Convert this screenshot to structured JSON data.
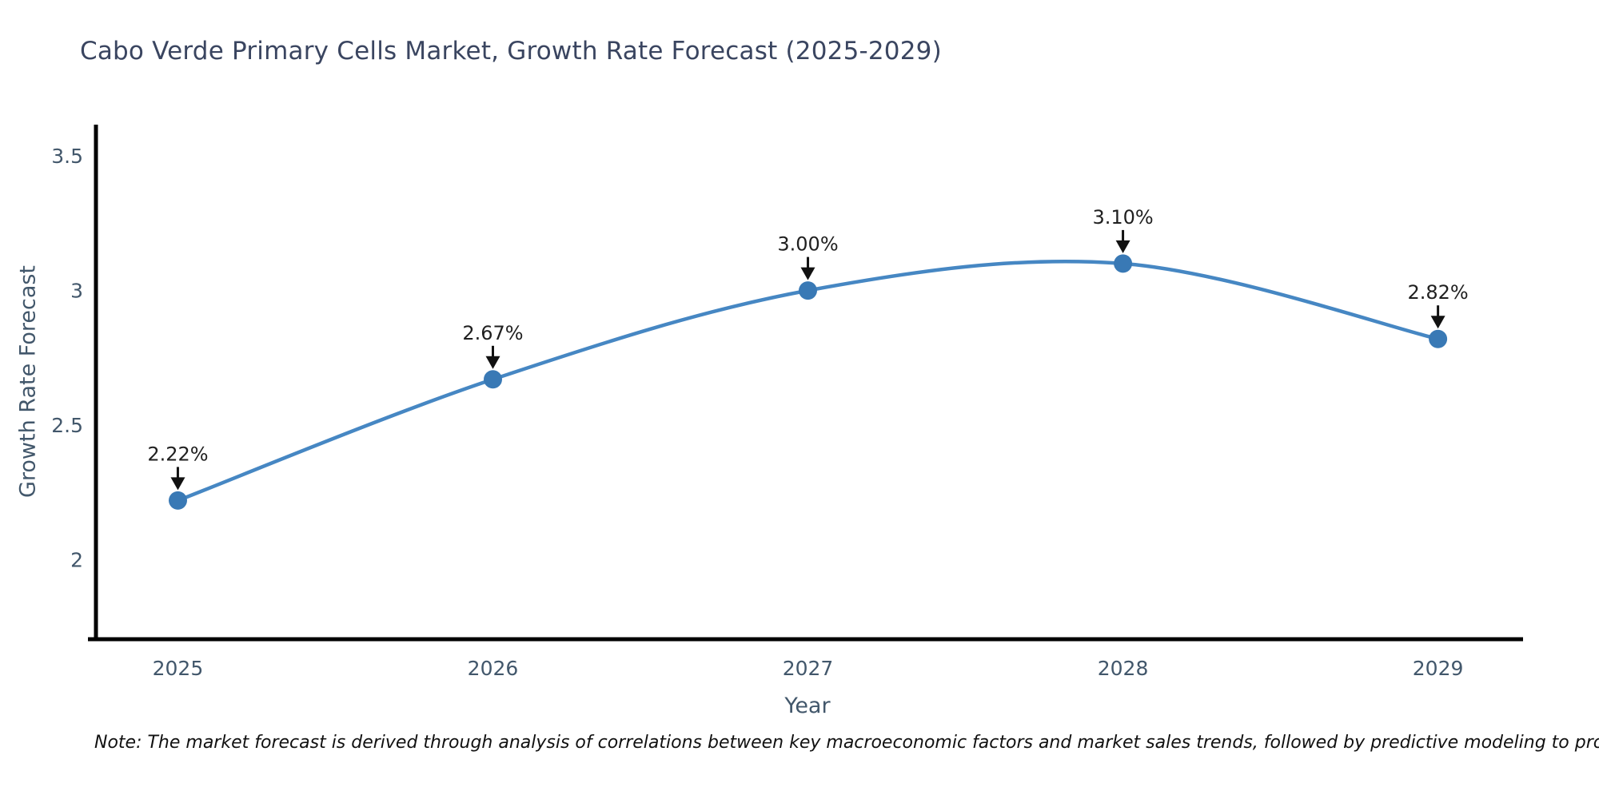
{
  "title": {
    "text": "Cabo Verde Primary Cells Market, Growth Rate Forecast (2025-2029)",
    "color": "#3a4560"
  },
  "footnote": {
    "text": "Note: The market forecast is derived through analysis of correlations between key macroeconomic factors and market sales trends, followed by predictive modeling to project future sales"
  },
  "chart_data": {
    "type": "line",
    "title": "Cabo Verde Primary Cells Market, Growth Rate Forecast (2025-2029)",
    "x": [
      2025,
      2026,
      2027,
      2028,
      2029
    ],
    "series": [
      {
        "name": "Growth Rate Forecast",
        "values": [
          2.22,
          2.67,
          3.0,
          3.1,
          2.82
        ]
      }
    ],
    "point_labels": [
      "2.22%",
      "2.67%",
      "3.00%",
      "3.10%",
      "2.82%"
    ],
    "xlabel": "Year",
    "ylabel": "Growth Rate Forecast",
    "x_tick_labels": [
      "2025",
      "2026",
      "2027",
      "2028",
      "2029"
    ],
    "y_tick_labels": [
      "2",
      "2.5",
      "3",
      "3.5"
    ],
    "y_tick_values": [
      2,
      2.5,
      3,
      3.5
    ],
    "xlim": [
      2024.74,
      2029.27
    ],
    "ylim": [
      1.705,
      3.616
    ],
    "grid": false,
    "legend_position": "none",
    "line_shape": "spline",
    "colors": {
      "line": "#4687c3",
      "marker": "#3979b5",
      "axis": "#000000",
      "tick_text": "#42576b",
      "annotation_text": "#1f1f1f",
      "arrow": "#111111"
    }
  }
}
